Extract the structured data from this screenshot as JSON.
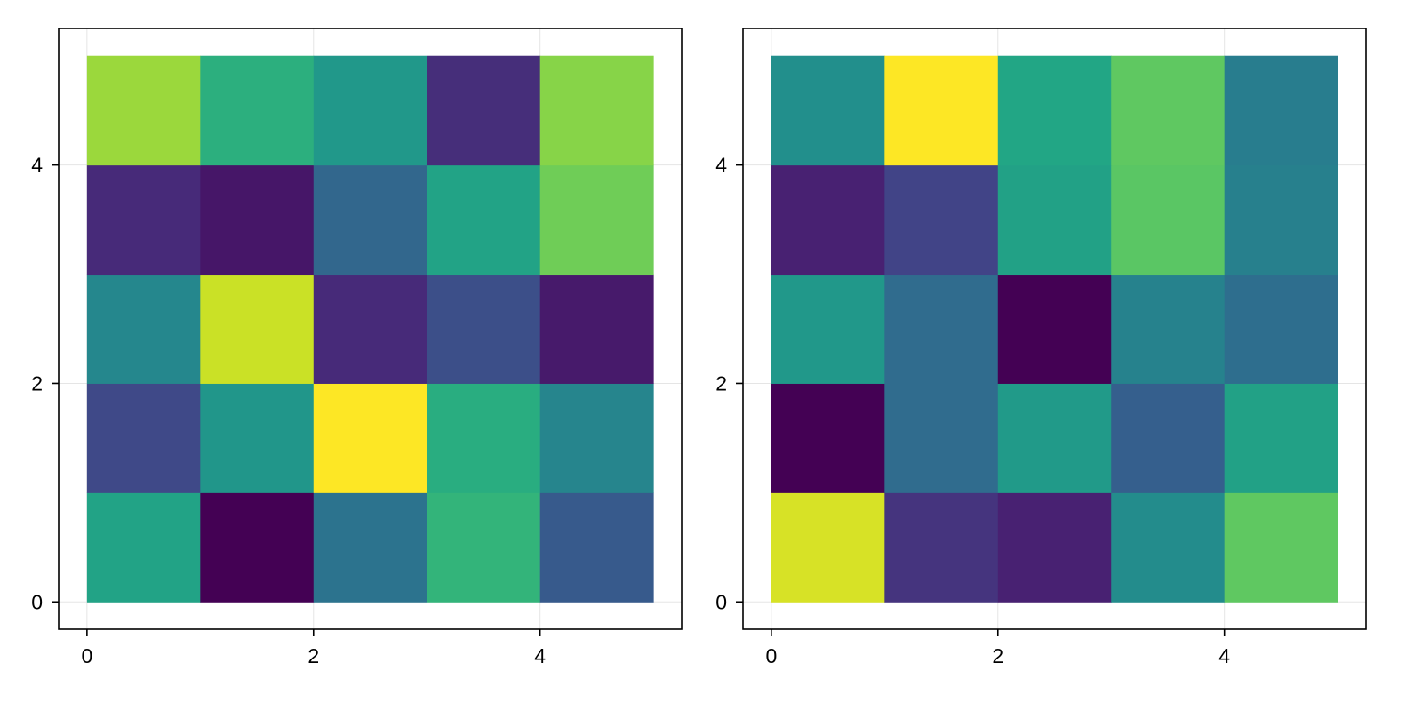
{
  "chart_data": [
    {
      "type": "heatmap",
      "title": "",
      "xlabel": "",
      "ylabel": "",
      "x_edges": [
        0,
        1,
        2,
        3,
        4,
        5
      ],
      "y_edges": [
        0,
        1,
        2,
        3,
        4,
        5
      ],
      "xlim": [
        -0.25,
        5.25
      ],
      "ylim": [
        -0.25,
        5.25
      ],
      "x_ticks": [
        0,
        2,
        4
      ],
      "y_ticks": [
        0,
        2,
        4
      ],
      "x_tick_labels": [
        "0",
        "2",
        "4"
      ],
      "y_tick_labels": [
        "0",
        "2",
        "4"
      ],
      "grid": true,
      "colormap": "viridis",
      "color_range": [
        0,
        1
      ],
      "rows_bottom_to_top": [
        [
          0.58,
          0.0,
          0.38,
          0.65,
          0.28
        ],
        [
          0.22,
          0.52,
          1.0,
          0.62,
          0.45
        ],
        [
          0.46,
          0.92,
          0.12,
          0.24,
          0.07
        ],
        [
          0.12,
          0.06,
          0.33,
          0.58,
          0.78
        ],
        [
          0.85,
          0.63,
          0.53,
          0.13,
          0.82
        ]
      ]
    },
    {
      "type": "heatmap",
      "title": "",
      "xlabel": "",
      "ylabel": "",
      "x_edges": [
        0,
        1,
        2,
        3,
        4,
        5
      ],
      "y_edges": [
        0,
        1,
        2,
        3,
        4,
        5
      ],
      "xlim": [
        -0.25,
        5.25
      ],
      "ylim": [
        -0.25,
        5.25
      ],
      "x_ticks": [
        0,
        2,
        4
      ],
      "y_ticks": [
        0,
        2,
        4
      ],
      "x_tick_labels": [
        "0",
        "2",
        "4"
      ],
      "y_tick_labels": [
        "0",
        "2",
        "4"
      ],
      "grid": true,
      "colormap": "viridis",
      "color_range": [
        0,
        1
      ],
      "rows_bottom_to_top": [
        [
          0.94,
          0.15,
          0.09,
          0.48,
          0.75
        ],
        [
          0.0,
          0.35,
          0.54,
          0.3,
          0.57
        ],
        [
          0.53,
          0.35,
          0.0,
          0.44,
          0.36
        ],
        [
          0.09,
          0.2,
          0.57,
          0.74,
          0.43
        ],
        [
          0.49,
          1.0,
          0.59,
          0.75,
          0.42
        ]
      ]
    }
  ],
  "colors": {
    "frame": "#000000",
    "grid": "#e5e5e5",
    "background": "#ffffff"
  }
}
